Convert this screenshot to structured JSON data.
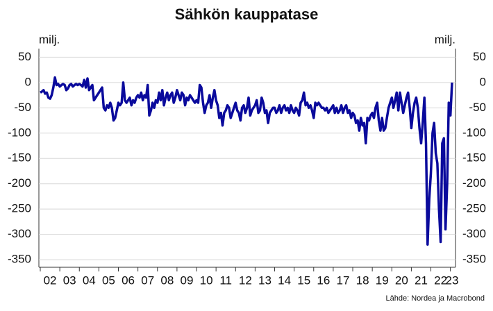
{
  "chart_data": {
    "type": "line",
    "title": "Sähkön kauppatase",
    "y_label": "milj.",
    "source": "Lähde: Nordea ja Macrobond",
    "categories": [
      null,
      null,
      null,
      null,
      null,
      null,
      "02",
      null,
      null,
      null,
      null,
      null,
      null,
      null,
      null,
      null,
      null,
      null,
      "03",
      null,
      null,
      null,
      null,
      null,
      null,
      null,
      null,
      null,
      null,
      null,
      "04",
      null,
      null,
      null,
      null,
      null,
      null,
      null,
      null,
      null,
      null,
      null,
      "05",
      null,
      null,
      null,
      null,
      null,
      null,
      null,
      null,
      null,
      null,
      null,
      "06",
      null,
      null,
      null,
      null,
      null,
      null,
      null,
      null,
      null,
      null,
      null,
      "07",
      null,
      null,
      null,
      null,
      null,
      null,
      null,
      null,
      null,
      null,
      null,
      "08",
      null,
      null,
      null,
      null,
      null,
      null,
      null,
      null,
      null,
      null,
      null,
      "09",
      null,
      null,
      null,
      null,
      null,
      null,
      null,
      null,
      null,
      null,
      null,
      "10",
      null,
      null,
      null,
      null,
      null,
      null,
      null,
      null,
      null,
      null,
      null,
      "11",
      null,
      null,
      null,
      null,
      null,
      null,
      null,
      null,
      null,
      null,
      null,
      "12",
      null,
      null,
      null,
      null,
      null,
      null,
      null,
      null,
      null,
      null,
      null,
      "13",
      null,
      null,
      null,
      null,
      null,
      null,
      null,
      null,
      null,
      null,
      null,
      "14",
      null,
      null,
      null,
      null,
      null,
      null,
      null,
      null,
      null,
      null,
      null,
      "15",
      null,
      null,
      null,
      null,
      null,
      null,
      null,
      null,
      null,
      null,
      null,
      "16",
      null,
      null,
      null,
      null,
      null,
      null,
      null,
      null,
      null,
      null,
      null,
      "17",
      null,
      null,
      null,
      null,
      null,
      null,
      null,
      null,
      null,
      null,
      null,
      "18",
      null,
      null,
      null,
      null,
      null,
      null,
      null,
      null,
      null,
      null,
      null,
      "19",
      null,
      null,
      null,
      null,
      null,
      null,
      null,
      null,
      null,
      null,
      null,
      "20",
      null,
      null,
      null,
      null,
      null,
      null,
      null,
      null,
      null,
      null,
      null,
      "21",
      null,
      null,
      null,
      null,
      null,
      null,
      null,
      null,
      null,
      null,
      null,
      "22",
      null,
      null,
      null,
      null,
      null,
      null,
      "23"
    ],
    "series": [
      {
        "color": "#0a0a9c",
        "values": [
          -20,
          -18,
          -15,
          -22,
          -20,
          -30,
          -32,
          -25,
          -10,
          10,
          -5,
          -3,
          -8,
          -5,
          -3,
          -5,
          -15,
          -12,
          -5,
          -3,
          -8,
          -5,
          -3,
          -5,
          -3,
          -5,
          -8,
          5,
          -10,
          8,
          -15,
          -10,
          -5,
          -35,
          -30,
          -25,
          -20,
          -15,
          -10,
          -50,
          -55,
          -45,
          -50,
          -40,
          -50,
          -75,
          -70,
          -55,
          -40,
          -45,
          -40,
          0,
          -35,
          -40,
          -35,
          -30,
          -45,
          -35,
          -40,
          -30,
          -25,
          -30,
          -20,
          -35,
          -25,
          -30,
          -5,
          -65,
          -55,
          -40,
          -50,
          -35,
          -40,
          -20,
          -35,
          -15,
          -45,
          -30,
          -20,
          -35,
          -25,
          -20,
          -40,
          -30,
          -15,
          -25,
          -35,
          -20,
          -25,
          -45,
          -30,
          -35,
          -25,
          -30,
          -35,
          -40,
          -35,
          -40,
          -5,
          -10,
          -40,
          -60,
          -45,
          -40,
          -25,
          -50,
          -30,
          -15,
          -35,
          -45,
          -70,
          -60,
          -85,
          -60,
          -55,
          -45,
          -50,
          -70,
          -60,
          -50,
          -40,
          -55,
          -60,
          -75,
          -50,
          -45,
          -60,
          -50,
          -30,
          -65,
          -55,
          -50,
          -45,
          -35,
          -60,
          -55,
          -30,
          -40,
          -60,
          -55,
          -80,
          -60,
          -55,
          -50,
          -50,
          -60,
          -55,
          -45,
          -60,
          -50,
          -45,
          -55,
          -50,
          -60,
          -45,
          -55,
          -60,
          -50,
          -55,
          -65,
          -40,
          -35,
          -20,
          -45,
          -40,
          -50,
          -45,
          -55,
          -70,
          -40,
          -45,
          -40,
          -45,
          -50,
          -50,
          -55,
          -50,
          -60,
          -55,
          -50,
          -45,
          -60,
          -50,
          -60,
          -55,
          -45,
          -60,
          -50,
          -45,
          -60,
          -55,
          -70,
          -60,
          -65,
          -80,
          -75,
          -95,
          -70,
          -85,
          -80,
          -120,
          -70,
          -75,
          -65,
          -60,
          -70,
          -50,
          -40,
          -75,
          -95,
          -70,
          -95,
          -90,
          -70,
          -50,
          -40,
          -30,
          -50,
          -35,
          -20,
          -55,
          -20,
          -40,
          -60,
          -45,
          -30,
          -20,
          -50,
          -90,
          -60,
          -40,
          -30,
          -50,
          -90,
          -120,
          -80,
          -30,
          -120,
          -320,
          -230,
          -180,
          -100,
          -80,
          -140,
          -160,
          -250,
          -315,
          -120,
          -110,
          -290,
          -200,
          -40,
          -65,
          0
        ]
      }
    ],
    "ylim": [
      -365,
      67
    ],
    "yticks": [
      50,
      0,
      -50,
      -100,
      -150,
      -200,
      -250,
      -300,
      -350
    ],
    "grid": true
  }
}
